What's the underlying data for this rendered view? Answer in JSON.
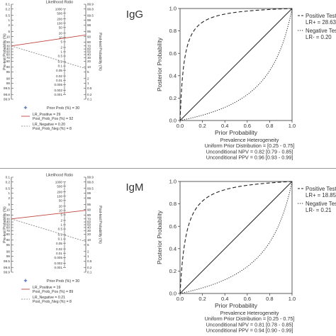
{
  "chart_data": [
    {
      "type": "nomogram",
      "panel": "IgG",
      "label": "IgG",
      "left_axis_label": "Pre-test Probability (%)",
      "right_axis_label": "Post-test Probability (%)",
      "middle_axis_label": "Likelihood Ratio",
      "left_ticks": [
        "0.1",
        "0.2",
        "0.5",
        "1",
        "2",
        "5",
        "10",
        "20",
        "30",
        "40",
        "50",
        "60",
        "70",
        "80",
        "90",
        "95",
        "98",
        "99",
        "99.5",
        "99.8",
        "99.9"
      ],
      "right_ticks": [
        "99.9",
        "99.8",
        "99.5",
        "99",
        "98",
        "95",
        "90",
        "80",
        "70",
        "60",
        "50",
        "40",
        "30",
        "20",
        "10",
        "5",
        "2",
        "1",
        "0.5",
        "0.2",
        "0.1"
      ],
      "lr_ticks": [
        "1000",
        "500",
        "200",
        "100",
        "50",
        "20",
        "10",
        "5",
        "2",
        "1",
        "0.5",
        "0.2",
        "0.1",
        "0.05",
        "0.02",
        "0.01",
        "0.005",
        "0.002",
        "0.001"
      ],
      "prior_prob": 30,
      "lr_positive": 29,
      "post_prob_pos": 92,
      "lr_negative": 0.2,
      "post_prob_neg": 8,
      "legend": [
        {
          "label": "Prior Prob (%) = 30"
        },
        {
          "label": "LR_Positive = 29",
          "sub": "Post_Prob_Pos (%) = 92"
        },
        {
          "label": "LR_Negative = 0.20",
          "sub": "Post_Prob_Neg (%) = 8"
        }
      ],
      "curves": {
        "xlabel": "Prior Probability",
        "ylabel": "Posterior Probability",
        "xlim": [
          0,
          1
        ],
        "ylim": [
          0,
          1
        ],
        "ticks": [
          "0.0",
          "0.2",
          "0.4",
          "0.6",
          "0.8",
          "1.0"
        ],
        "lr_pos": 28.63,
        "lr_neg": 0.2,
        "legend": [
          {
            "name": "Positive Test",
            "sub": "LR+ = 28.63"
          },
          {
            "name": "Negative Test",
            "sub": "LR- = 0.20"
          }
        ],
        "footer": [
          "Prevalence Heterogeneity",
          "Uniform Prior Distribution = [0.25 - 0.75]",
          "Unconditional NPV = 0.82 [0.79 - 0.85]",
          "Unconditional PPV = 0.96 [0.93 - 0.99]"
        ]
      }
    },
    {
      "type": "nomogram",
      "panel": "IgM",
      "label": "IgM",
      "left_axis_label": "Pre-test Probability (%)",
      "right_axis_label": "Post-test Probability (%)",
      "middle_axis_label": "Likelihood Ratio",
      "left_ticks": [
        "0.1",
        "0.2",
        "0.5",
        "1",
        "2",
        "5",
        "10",
        "20",
        "30",
        "40",
        "50",
        "60",
        "70",
        "80",
        "90",
        "95",
        "98",
        "99",
        "99.5",
        "99.8",
        "99.9"
      ],
      "right_ticks": [
        "99.9",
        "99.8",
        "99.5",
        "99",
        "98",
        "95",
        "90",
        "80",
        "70",
        "60",
        "50",
        "40",
        "30",
        "20",
        "10",
        "5",
        "2",
        "1",
        "0.5",
        "0.2",
        "0.1"
      ],
      "lr_ticks": [
        "1000",
        "500",
        "200",
        "100",
        "50",
        "20",
        "10",
        "5",
        "2",
        "1",
        "0.5",
        "0.2",
        "0.1",
        "0.05",
        "0.02",
        "0.01",
        "0.005",
        "0.002",
        "0.001"
      ],
      "prior_prob": 30,
      "lr_positive": 19,
      "post_prob_pos": 89,
      "lr_negative": 0.21,
      "post_prob_neg": 8,
      "legend": [
        {
          "label": "Prior Prob (%) = 30"
        },
        {
          "label": "LR_Positive = 19",
          "sub": "Post_Prob_Pos (%) = 89"
        },
        {
          "label": "LR_Negative = 0.21",
          "sub": "Post_Prob_Neg (%) = 8"
        }
      ],
      "curves": {
        "xlabel": "Prior Probability",
        "ylabel": "Posterior Probability",
        "xlim": [
          0,
          1
        ],
        "ylim": [
          0,
          1
        ],
        "ticks": [
          "0.0",
          "0.2",
          "0.4",
          "0.6",
          "0.8",
          "1.0"
        ],
        "lr_pos": 18.85,
        "lr_neg": 0.21,
        "legend": [
          {
            "name": "Positive Test",
            "sub": "LR+ = 18.85"
          },
          {
            "name": "Negative Test",
            "sub": "LR- = 0.21"
          }
        ],
        "footer": [
          "Prevalence Heterogeneity",
          "Uniform Prior Distribution = [0.25 - 0.75]",
          "Unconditional NPV = 0.81 [0.78 - 0.85]",
          "Unconditional PPV = 0.94 [0.90 - 0.99]"
        ]
      }
    }
  ]
}
